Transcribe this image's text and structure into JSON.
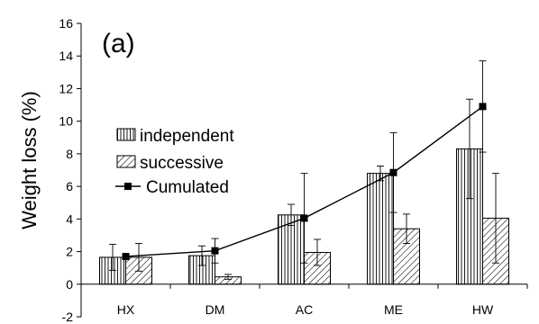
{
  "chart_data": {
    "type": "bar",
    "panel_label": "(a)",
    "xlabel": "",
    "ylabel": "Weight loss (%)",
    "ylim": [
      -2,
      16
    ],
    "yticks": [
      -2,
      0,
      2,
      4,
      6,
      8,
      10,
      12,
      14,
      16
    ],
    "categories": [
      "HX",
      "DM",
      "AC",
      "ME",
      "HW"
    ],
    "legend_position": "left-middle",
    "series": [
      {
        "name": "independent",
        "kind": "bar",
        "pattern": "vertical-lines",
        "values": [
          1.65,
          1.75,
          4.25,
          6.8,
          8.3
        ],
        "errors": [
          0.8,
          0.6,
          0.65,
          0.45,
          3.05
        ]
      },
      {
        "name": "successive",
        "kind": "bar",
        "pattern": "diagonal-lines",
        "values": [
          1.65,
          0.45,
          1.95,
          3.4,
          4.05
        ],
        "errors": [
          0.85,
          0.15,
          0.8,
          0.9,
          2.75
        ]
      },
      {
        "name": "Cumulated",
        "kind": "line",
        "marker": "square",
        "values": [
          1.7,
          2.05,
          4.05,
          6.85,
          10.9
        ],
        "errors": [
          0,
          0.75,
          2.75,
          2.45,
          2.8
        ]
      }
    ]
  }
}
